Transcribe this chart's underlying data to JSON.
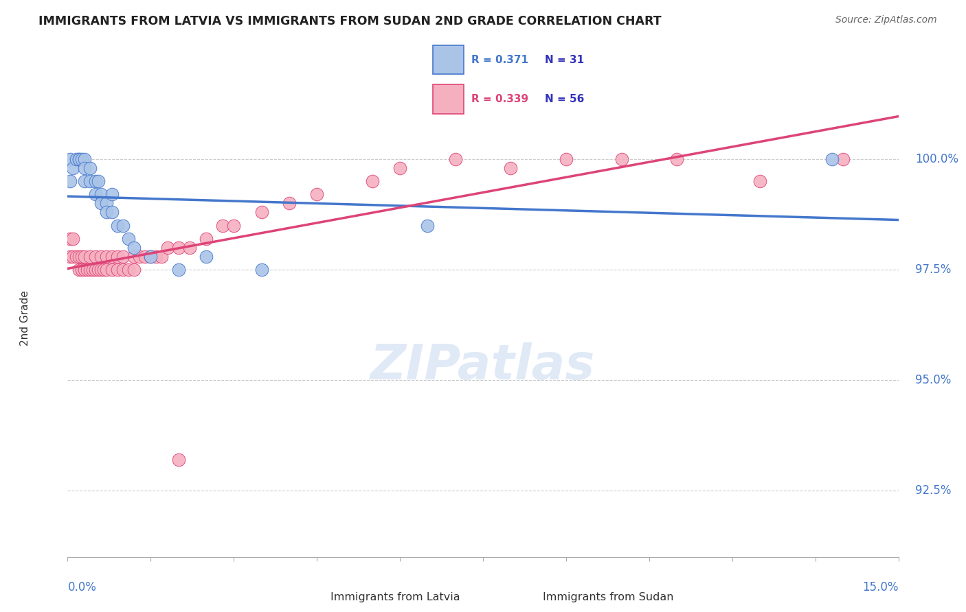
{
  "title": "IMMIGRANTS FROM LATVIA VS IMMIGRANTS FROM SUDAN 2ND GRADE CORRELATION CHART",
  "source": "Source: ZipAtlas.com",
  "ylabel": "2nd Grade",
  "ylabel_tick_vals": [
    100.0,
    97.5,
    95.0,
    92.5
  ],
  "ylim": [
    91.0,
    101.8
  ],
  "xlim": [
    0.0,
    15.0
  ],
  "latvia_R": 0.371,
  "latvia_N": 31,
  "sudan_R": 0.339,
  "sudan_N": 56,
  "latvia_color": "#aac4e8",
  "sudan_color": "#f5b0c0",
  "latvia_line_color": "#4477cc",
  "sudan_line_color": "#dd4477",
  "grid_color": "#cccccc",
  "title_color": "#222222",
  "source_color": "#666666",
  "tick_label_color": "#4477cc",
  "legend_text_color_r": "#4477cc",
  "legend_text_color_n": "#3333bb",
  "legend_text_color_r2": "#dd4477",
  "watermark_color": "#c8d8f0",
  "latvia_scatter_x": [
    0.05,
    0.05,
    0.1,
    0.15,
    0.2,
    0.2,
    0.25,
    0.3,
    0.3,
    0.3,
    0.4,
    0.4,
    0.5,
    0.5,
    0.55,
    0.6,
    0.6,
    0.7,
    0.7,
    0.8,
    0.8,
    0.9,
    1.0,
    1.1,
    1.2,
    1.5,
    2.0,
    2.5,
    3.5,
    6.5,
    13.8
  ],
  "latvia_scatter_y": [
    99.5,
    100.0,
    99.8,
    100.0,
    100.0,
    100.0,
    100.0,
    100.0,
    99.8,
    99.5,
    99.5,
    99.8,
    99.5,
    99.2,
    99.5,
    99.2,
    99.0,
    99.0,
    98.8,
    98.8,
    99.2,
    98.5,
    98.5,
    98.2,
    98.0,
    97.8,
    97.5,
    97.8,
    97.5,
    98.5,
    100.0
  ],
  "sudan_scatter_x": [
    0.05,
    0.05,
    0.1,
    0.1,
    0.15,
    0.2,
    0.2,
    0.25,
    0.25,
    0.3,
    0.3,
    0.35,
    0.4,
    0.4,
    0.45,
    0.5,
    0.5,
    0.55,
    0.6,
    0.6,
    0.65,
    0.7,
    0.7,
    0.8,
    0.8,
    0.9,
    0.9,
    1.0,
    1.0,
    1.1,
    1.2,
    1.2,
    1.3,
    1.4,
    1.5,
    1.6,
    1.7,
    1.8,
    2.0,
    2.2,
    2.5,
    2.8,
    3.0,
    3.5,
    4.0,
    4.5,
    5.5,
    6.0,
    7.0,
    8.0,
    9.0,
    10.0,
    11.0,
    12.5,
    14.0,
    2.0
  ],
  "sudan_scatter_y": [
    97.8,
    98.2,
    97.8,
    98.2,
    97.8,
    97.5,
    97.8,
    97.5,
    97.8,
    97.5,
    97.8,
    97.5,
    97.5,
    97.8,
    97.5,
    97.5,
    97.8,
    97.5,
    97.5,
    97.8,
    97.5,
    97.5,
    97.8,
    97.5,
    97.8,
    97.5,
    97.8,
    97.5,
    97.8,
    97.5,
    97.5,
    97.8,
    97.8,
    97.8,
    97.8,
    97.8,
    97.8,
    98.0,
    98.0,
    98.0,
    98.2,
    98.5,
    98.5,
    98.8,
    99.0,
    99.2,
    99.5,
    99.8,
    100.0,
    99.8,
    100.0,
    100.0,
    100.0,
    99.5,
    100.0,
    93.2
  ]
}
